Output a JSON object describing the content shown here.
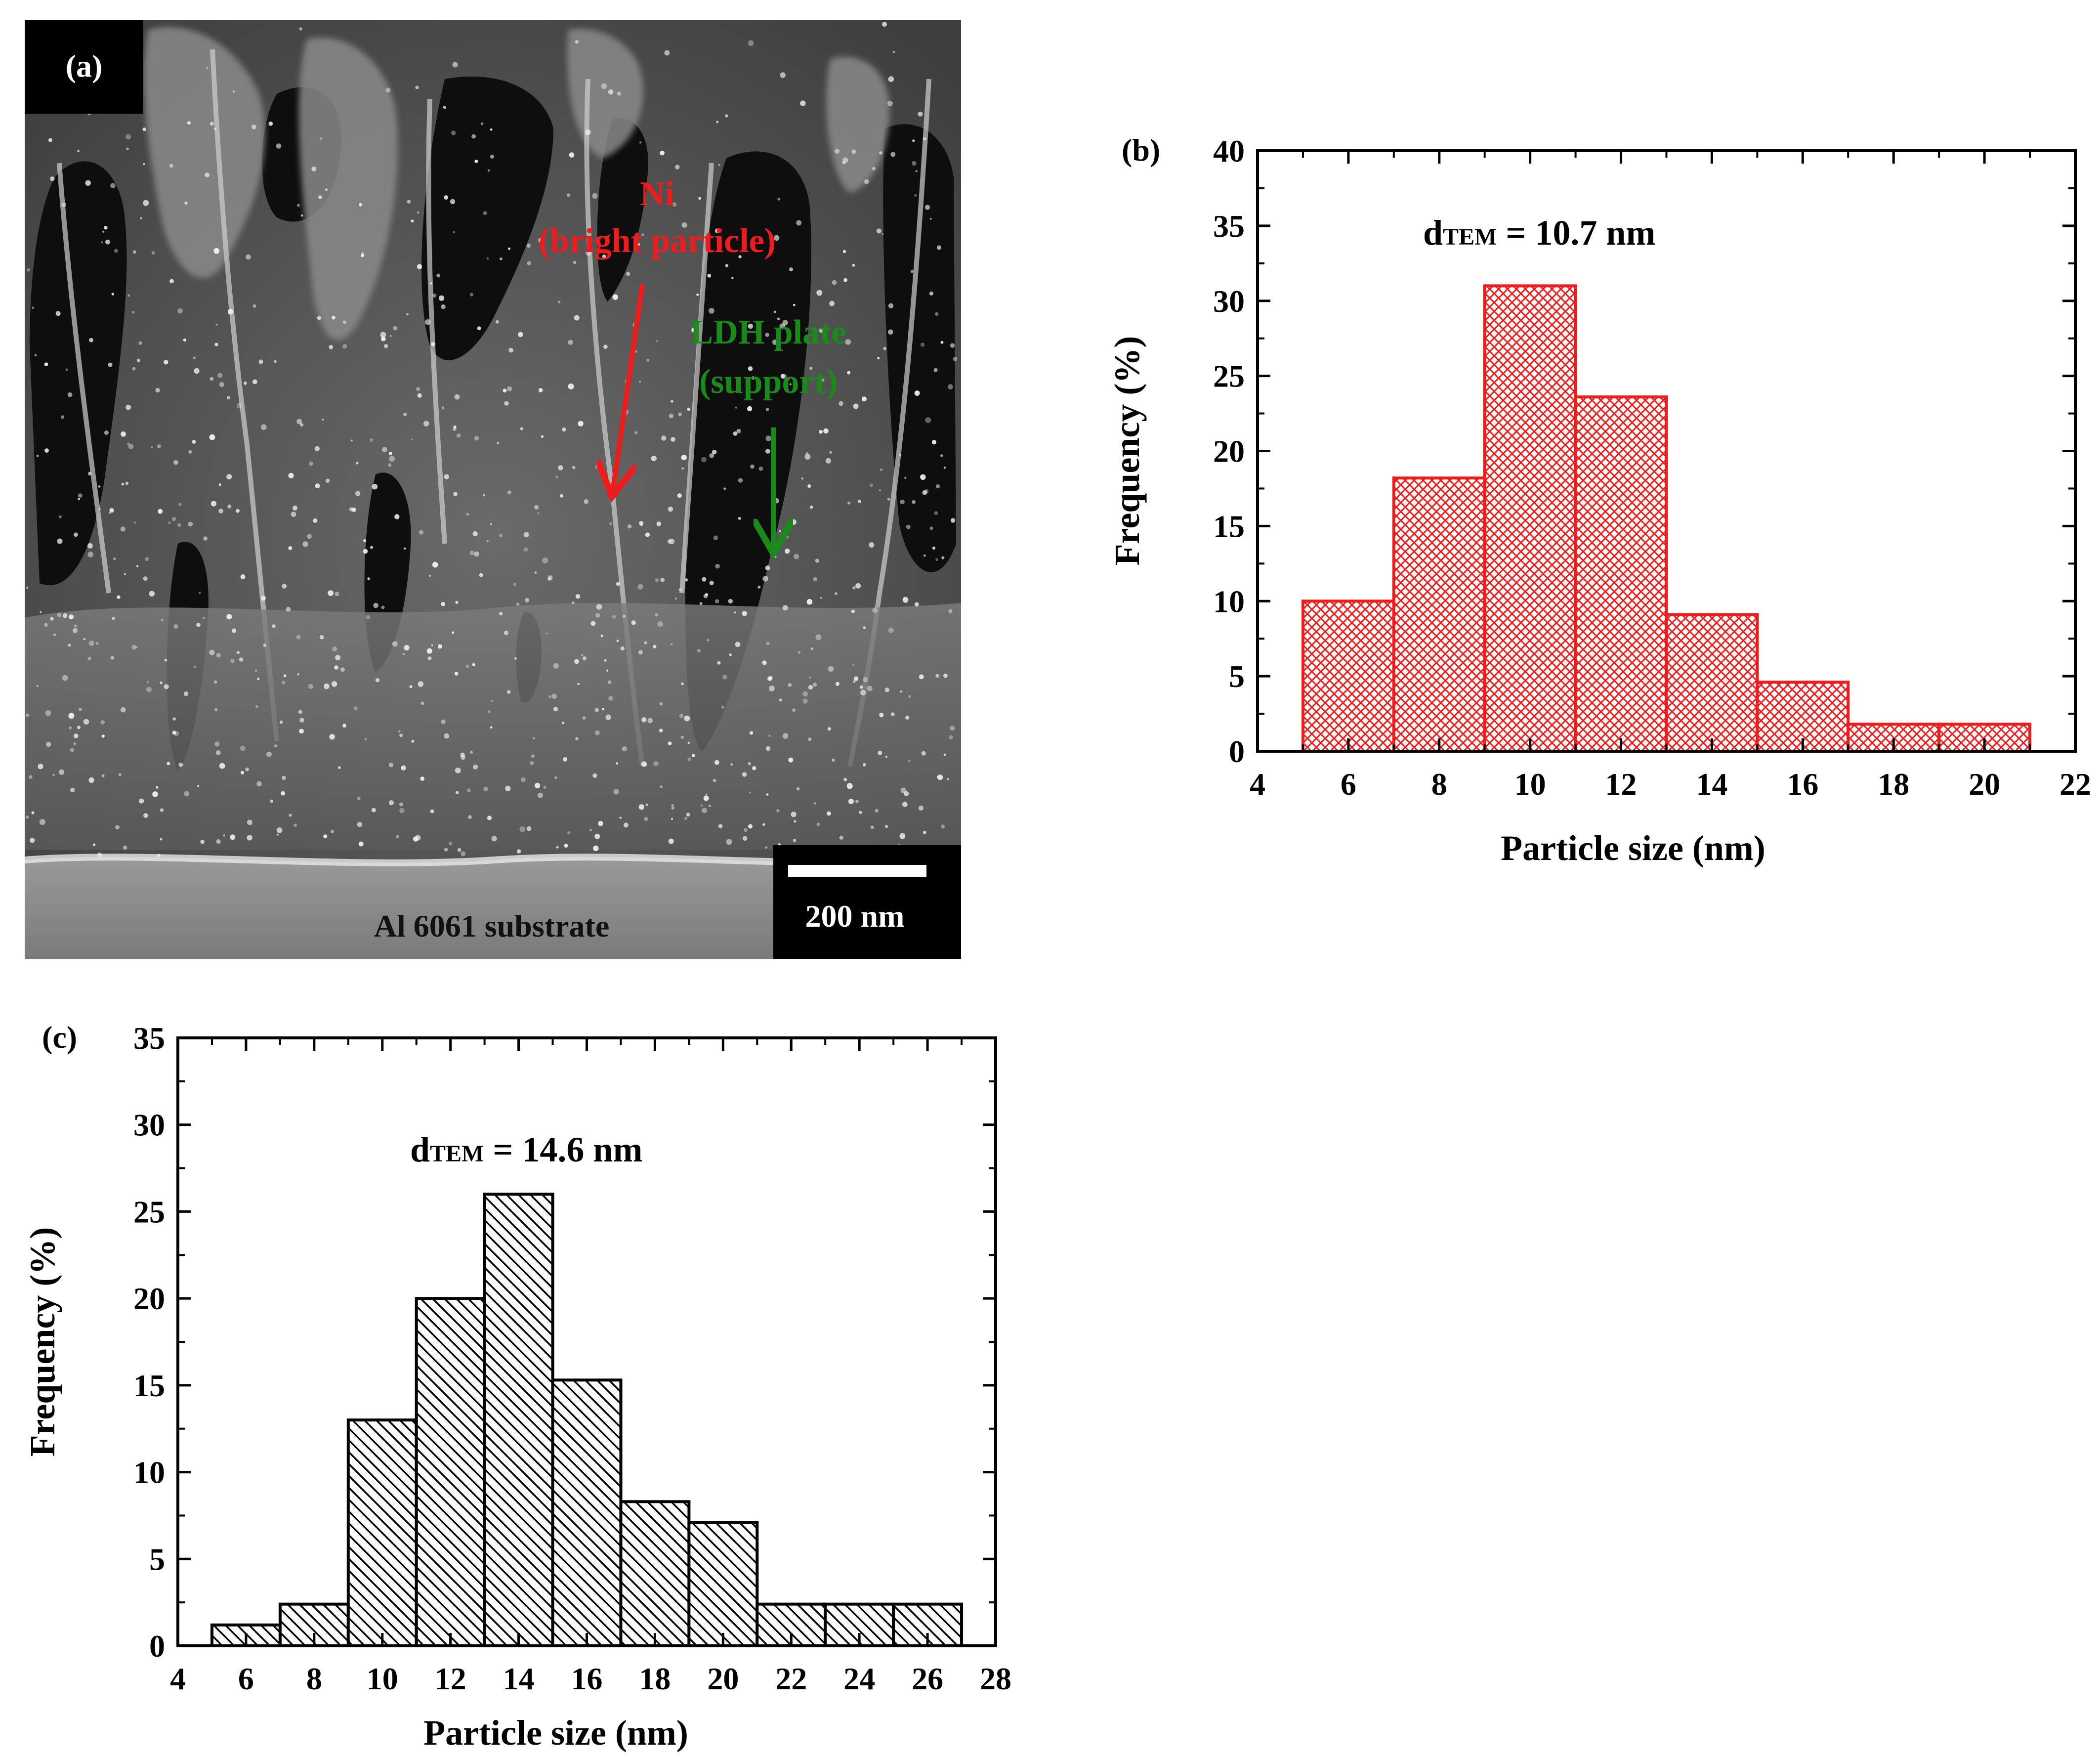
{
  "panels": {
    "a": {
      "letter": "(a)",
      "ni_label_line1": "Ni",
      "ni_label_line2": "(bright particle)",
      "ldh_label_line1": "LDH plate",
      "ldh_label_line2": "(support)",
      "scale_bar": "200 nm",
      "substrate": "Al 6061 substrate",
      "colors": {
        "ni": "#ee1c1c",
        "ldh": "#1a8a1a"
      }
    }
  },
  "chart_data": [
    {
      "id": "b",
      "type": "bar",
      "letter": "(b)",
      "annotation_main": "d",
      "annotation_sub": "TEM",
      "annotation_rest": " = 10.7 nm",
      "xlabel": "Particle size (nm)",
      "ylabel": "Frequency (%)",
      "xlim": [
        4,
        22
      ],
      "ylim": [
        0,
        40
      ],
      "xticks": [
        4,
        6,
        8,
        10,
        12,
        14,
        16,
        18,
        20,
        22
      ],
      "yticks": [
        0,
        5,
        10,
        15,
        20,
        25,
        30,
        35,
        40
      ],
      "bin_width": 2,
      "bin_starts": [
        5,
        7,
        9,
        11,
        13,
        15,
        17,
        19
      ],
      "values": [
        10,
        18.2,
        31,
        23.6,
        9.1,
        4.6,
        1.8,
        1.8
      ],
      "color": "#ee1c1c",
      "fill_pattern": "crosshatch",
      "grid": false
    },
    {
      "id": "c",
      "type": "bar",
      "letter": "(c)",
      "annotation_main": "d",
      "annotation_sub": "TEM",
      "annotation_rest": " = 14.6 nm",
      "xlabel": "Particle size (nm)",
      "ylabel": "Frequency (%)",
      "xlim": [
        4,
        28
      ],
      "ylim": [
        0,
        35
      ],
      "xticks": [
        4,
        6,
        8,
        10,
        12,
        14,
        16,
        18,
        20,
        22,
        24,
        26,
        28
      ],
      "yticks": [
        0,
        5,
        10,
        15,
        20,
        25,
        30,
        35
      ],
      "bin_width": 2,
      "bin_starts": [
        5,
        7,
        9,
        11,
        13,
        15,
        17,
        19,
        21,
        23,
        25
      ],
      "values": [
        1.2,
        2.4,
        13,
        20,
        26,
        15.3,
        8.3,
        7.1,
        2.4,
        2.4,
        2.4
      ],
      "color": "#000000",
      "fill_pattern": "diagonal",
      "grid": false
    }
  ]
}
